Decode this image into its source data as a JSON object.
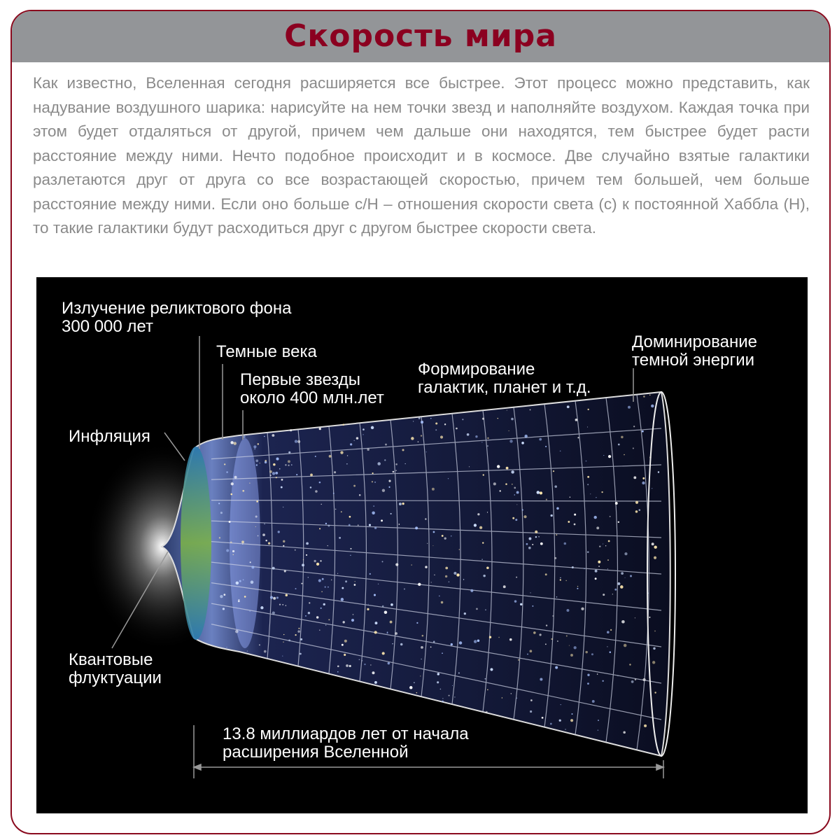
{
  "title": "Скорость мира",
  "paragraph": "Как известно, Вселенная сегодня расширяется все быстрее. Этот процесс можно представить, как надувание воздушного шарика: нарисуйте на нем точки звезд и наполняйте воздухом. Каждая точка при этом будет отдаляться от другой, причем чем дальше они находятся, тем быстрее будет расти расстояние между ними. Нечто подобное происходит и в космосе. Две случайно взятые галактики разлетаются друг от друга со все возрастающей скоростью, причем тем большей, чем больше расстояние между ними. Если оно больше c/H – отношения скорости света (c) к постоянной Хаббла (H), то такие галактики будут расходиться друг с другом быстрее скорости света.",
  "diagram": {
    "labels": {
      "cmb_line1": "Излучение реликтового фона",
      "cmb_line2": "300 000 лет",
      "dark_ages": "Темные века",
      "first_stars_line1": "Первые звезды",
      "first_stars_line2": "около 400 млн.лет",
      "galaxies_line1": "Формирование",
      "galaxies_line2": "галактик, планет и т.д.",
      "dark_energy_line1": "Доминирование",
      "dark_energy_line2": "темной энергии",
      "inflation": "Инфляция",
      "quantum_line1": "Квантовые",
      "quantum_line2": "флуктуации",
      "timespan_line1": "13.8 миллиардов лет от начала",
      "timespan_line2": "расширения Вселенной"
    }
  },
  "colors": {
    "accent": "#8b0020",
    "header": "#939598",
    "text": "#8a8a8a",
    "figure_bg": "#000000"
  }
}
